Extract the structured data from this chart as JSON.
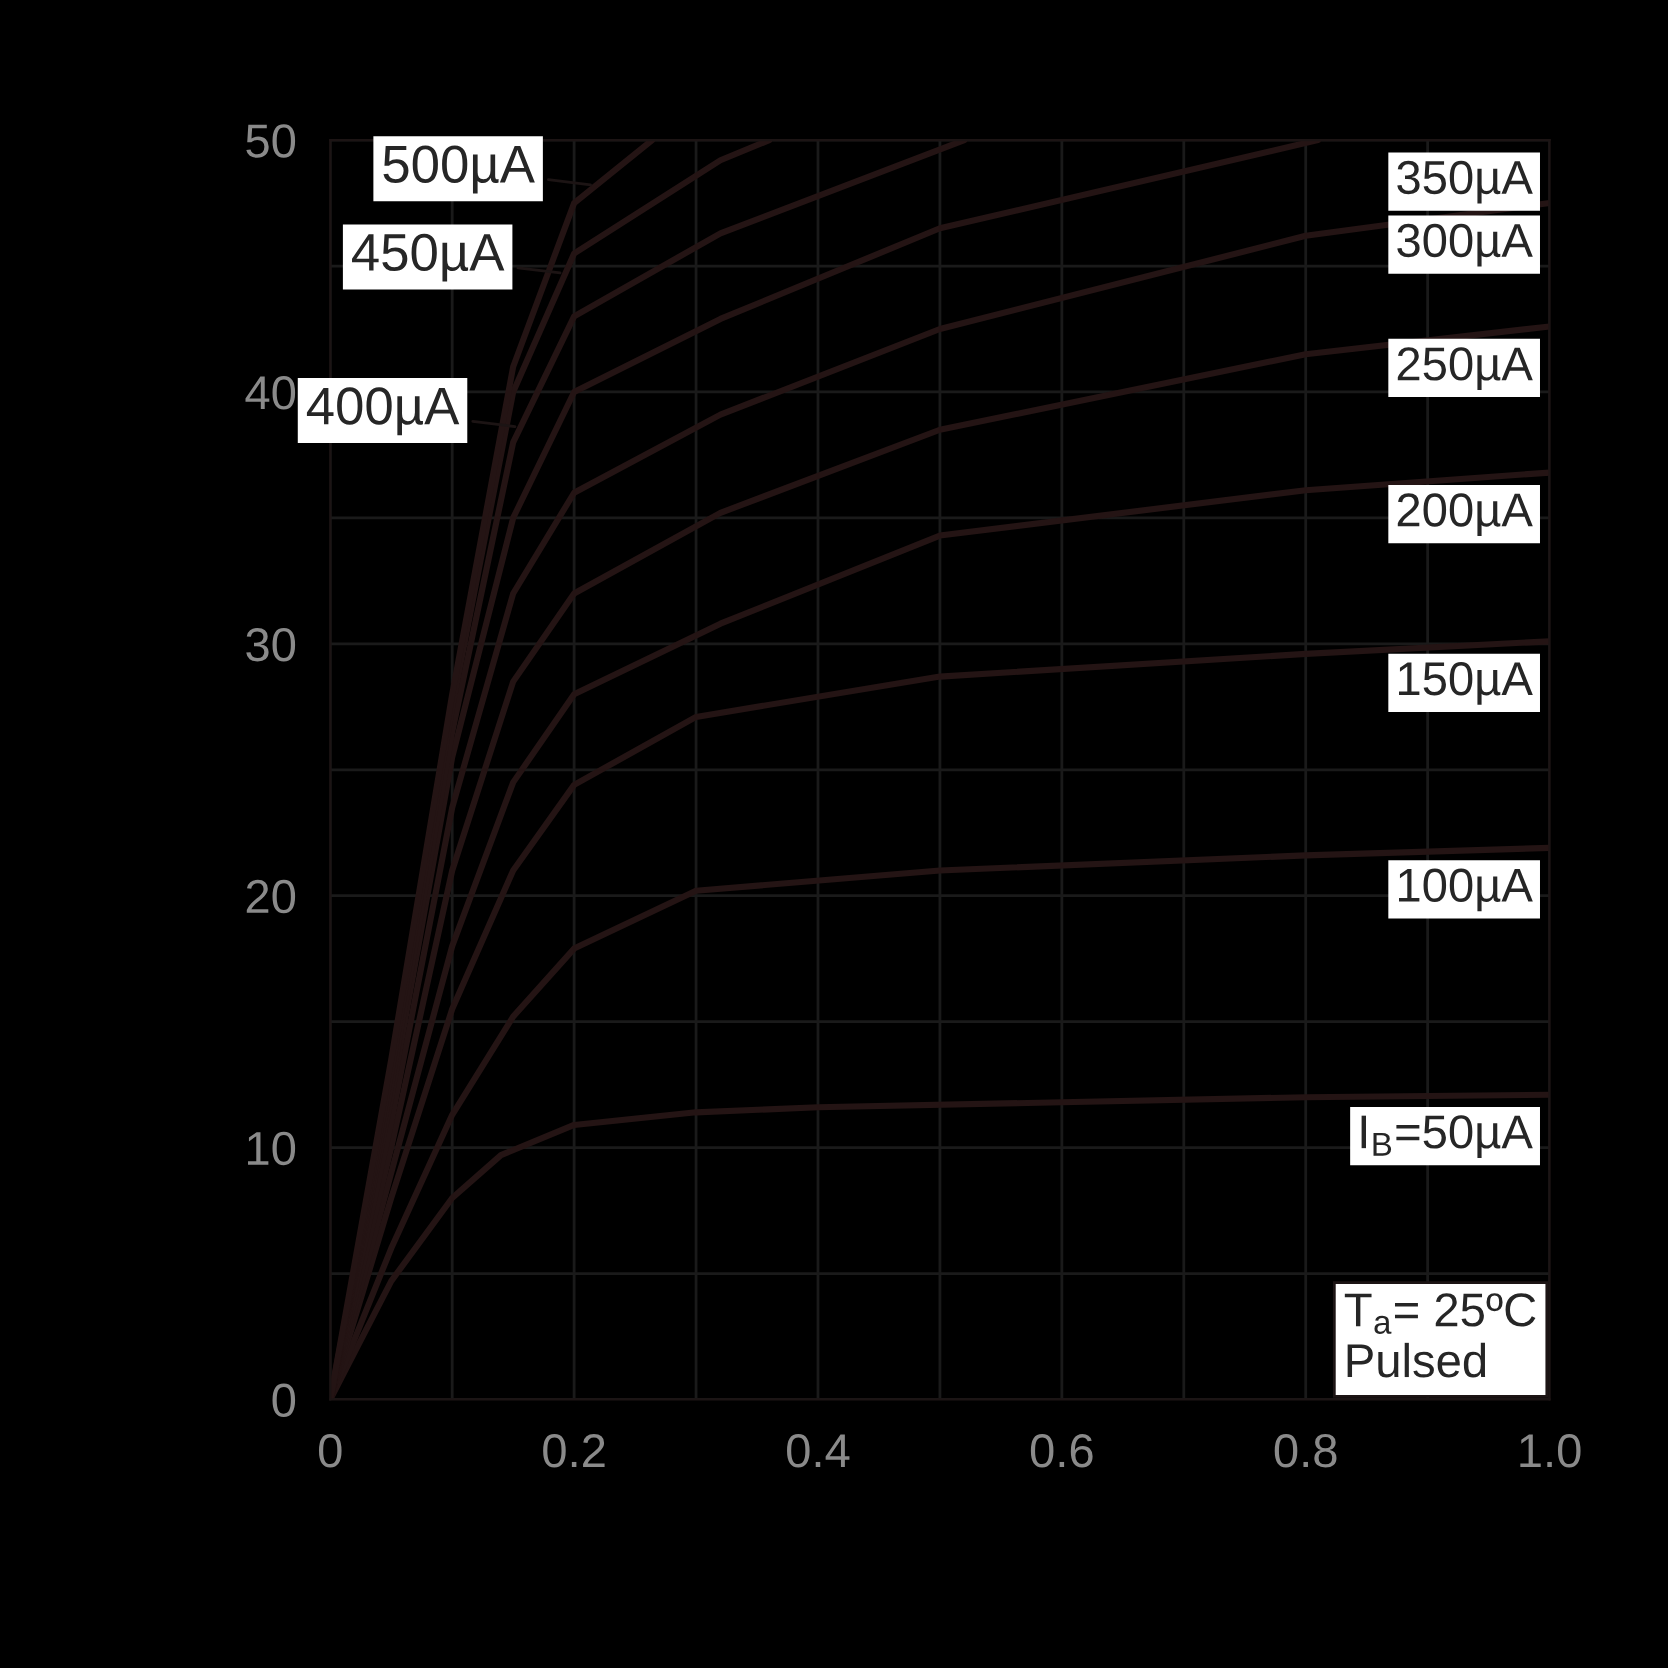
{
  "chart_data": {
    "type": "line",
    "xlim": [
      0,
      1
    ],
    "ylim": [
      0,
      50
    ],
    "xticks": [
      0,
      {
        "value": 0.1,
        "label": null
      },
      0.2,
      {
        "value": 0.3,
        "label": null
      },
      0.4,
      {
        "value": 0.5,
        "label": null
      },
      0.6,
      {
        "value": 0.7,
        "label": null
      },
      0.8,
      {
        "value": 0.9,
        "label": null
      },
      {
        "value": 1,
        "label": "1.0"
      }
    ],
    "yticks": [
      0,
      {
        "value": 5,
        "label": null
      },
      10,
      {
        "value": 15,
        "label": null
      },
      20,
      {
        "value": 25,
        "label": null
      },
      30,
      {
        "value": 35,
        "label": null
      },
      40,
      {
        "value": 45,
        "label": null
      },
      50
    ],
    "grid": true,
    "marker": "none",
    "line_style": "solid",
    "series": [
      {
        "color": "#241414",
        "x": [
          0,
          0.05,
          0.1,
          0.14,
          0.2,
          0.3,
          0.4,
          0.6,
          0.8,
          1.0
        ],
        "values": [
          0,
          4.7,
          8.0,
          9.7,
          10.9,
          11.4,
          11.6,
          11.8,
          12.0,
          12.1
        ]
      },
      {
        "color": "#241414",
        "x": [
          0,
          0.05,
          0.1,
          0.15,
          0.2,
          0.3,
          0.5,
          0.8,
          1.0
        ],
        "values": [
          0,
          6,
          11.3,
          15.2,
          17.9,
          20.2,
          21.0,
          21.6,
          21.9
        ]
      },
      {
        "color": "#241414",
        "x": [
          0,
          0.05,
          0.1,
          0.15,
          0.2,
          0.3,
          0.5,
          0.8,
          1.0
        ],
        "values": [
          0,
          8,
          15.5,
          21.0,
          24.4,
          27.1,
          28.7,
          29.6,
          30.1
        ]
      },
      {
        "color": "#241414",
        "x": [
          0,
          0.05,
          0.1,
          0.15,
          0.2,
          0.32,
          0.5,
          0.8,
          1.0
        ],
        "values": [
          0,
          9,
          18,
          24.5,
          28,
          30.8,
          34.3,
          36.1,
          36.8
        ]
      },
      {
        "color": "#241414",
        "x": [
          0,
          0.05,
          0.1,
          0.15,
          0.2,
          0.32,
          0.5,
          0.8,
          1.0
        ],
        "values": [
          0,
          10,
          21,
          28.5,
          32,
          35.2,
          38.5,
          41.5,
          42.6
        ]
      },
      {
        "color": "#241414",
        "x": [
          0,
          0.05,
          0.1,
          0.15,
          0.2,
          0.32,
          0.5,
          0.8,
          1.0
        ],
        "values": [
          0,
          11,
          23.5,
          32,
          36,
          39.1,
          42.5,
          46.2,
          47.5
        ]
      },
      {
        "color": "#241414",
        "x": [
          0,
          0.05,
          0.1,
          0.15,
          0.2,
          0.32,
          0.5,
          0.81
        ],
        "values": [
          0,
          12,
          25.5,
          35,
          40,
          42.9,
          46.5,
          50
        ]
      },
      {
        "color": "#241414",
        "x": [
          0,
          0.05,
          0.1,
          0.15,
          0.2,
          0.32,
          0.52
        ],
        "values": [
          0,
          12.5,
          26.5,
          38,
          43,
          46.3,
          50
        ]
      },
      {
        "color": "#241414",
        "x": [
          0,
          0.05,
          0.1,
          0.15,
          0.2,
          0.32,
          0.36
        ],
        "values": [
          0,
          13,
          27.5,
          40,
          45.5,
          49.2,
          50
        ]
      },
      {
        "color": "#241414",
        "x": [
          0,
          0.05,
          0.1,
          0.15,
          0.2,
          0.264
        ],
        "values": [
          0,
          13.5,
          28,
          41,
          47.5,
          50
        ]
      }
    ],
    "annotations": [
      {
        "text": "I$_{B}$=50µA",
        "x": 1.0,
        "y": 12.1
      },
      {
        "text": "100µA",
        "x": 1.0,
        "y": 21.9
      },
      {
        "text": "150µA",
        "x": 1.0,
        "y": 30.1
      },
      {
        "text": "200µA",
        "x": 1.0,
        "y": 36.8
      },
      {
        "text": "250µA",
        "x": 1.0,
        "y": 42.6
      },
      {
        "text": "300µA",
        "x": 1.0,
        "y": 47.5
      },
      {
        "text": "350µA",
        "x": 0.81,
        "y": 50
      },
      {
        "text": "400µA",
        "x": 0.156,
        "y": 38.6
      },
      {
        "text": "450µA",
        "x": 0.193,
        "y": 44.7
      },
      {
        "text": "500µA",
        "x": 0.218,
        "y": 48.2
      },
      "T$_{a}$= 25ºC\nPulsed"
    ]
  }
}
